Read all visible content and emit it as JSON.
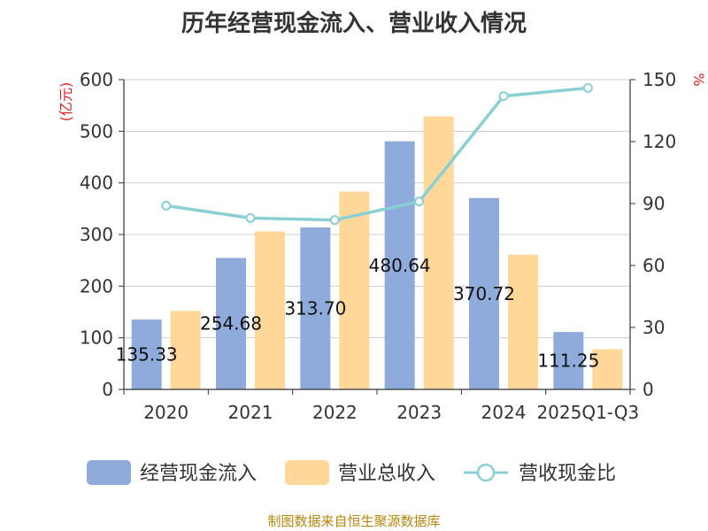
{
  "chart_data": {
    "type": "bar",
    "title": "历年经营现金流入、营业收入情况",
    "categories": [
      "2020",
      "2021",
      "2022",
      "2023",
      "2024",
      "2025Q1-Q3"
    ],
    "series": [
      {
        "name": "经营现金流入",
        "type": "bar",
        "axis": "left",
        "color": "#8eabdb",
        "values": [
          135.33,
          254.68,
          313.7,
          480.64,
          370.72,
          111.25
        ],
        "labels": [
          "135.33",
          "254.68",
          "313.70",
          "480.64",
          "370.72",
          "111.25"
        ]
      },
      {
        "name": "营业总收入",
        "type": "bar",
        "axis": "left",
        "color": "#ffd899",
        "values": [
          152,
          306,
          383,
          529,
          261,
          78
        ]
      },
      {
        "name": "营收现金比",
        "type": "line",
        "axis": "right",
        "color": "#88d0d4",
        "values": [
          89,
          83,
          82,
          91,
          142,
          146
        ]
      }
    ],
    "y_left": {
      "label": "(亿元)",
      "min": 0,
      "max": 600,
      "ticks": [
        "0",
        "100",
        "200",
        "300",
        "400",
        "500",
        "600"
      ]
    },
    "y_right": {
      "label": "%",
      "min": 0,
      "max": 150,
      "ticks": [
        "0",
        "30",
        "60",
        "90",
        "120",
        "150"
      ]
    },
    "grid": true,
    "legend_position": "bottom"
  },
  "source_text": "制图数据来自恒生聚源数据库"
}
